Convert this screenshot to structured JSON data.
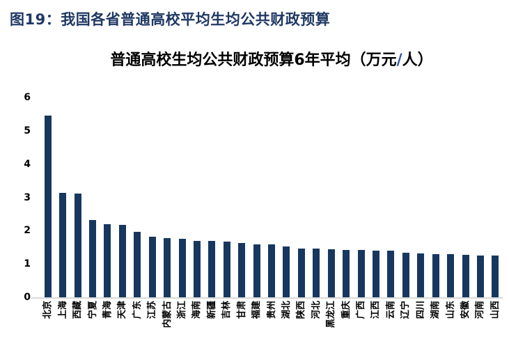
{
  "page": {
    "figure_title": "图19：我国各省普通高校平均生均公共财政预算"
  },
  "chart_data": {
    "type": "bar",
    "title": "普通高校生均公共财政预算6年平均（万元/人）",
    "xlabel": "",
    "ylabel": "",
    "ylim": [
      0,
      6
    ],
    "yticks": [
      0,
      1,
      2,
      3,
      4,
      5,
      6
    ],
    "grid": false,
    "legend": "none",
    "categories": [
      "北京",
      "上海",
      "西藏",
      "宁夏",
      "青海",
      "天津",
      "广东",
      "江苏",
      "内蒙古",
      "浙江",
      "海南",
      "新疆",
      "吉林",
      "甘肃",
      "福建",
      "贵州",
      "湖北",
      "陕西",
      "河北",
      "黑龙江",
      "重庆",
      "广西",
      "江西",
      "云南",
      "辽宁",
      "四川",
      "湖南",
      "山东",
      "安徽",
      "河南",
      "山西"
    ],
    "values": [
      5.45,
      3.14,
      3.12,
      2.32,
      2.2,
      2.17,
      1.96,
      1.81,
      1.77,
      1.75,
      1.7,
      1.69,
      1.67,
      1.63,
      1.59,
      1.58,
      1.53,
      1.47,
      1.47,
      1.44,
      1.43,
      1.42,
      1.4,
      1.4,
      1.34,
      1.32,
      1.29,
      1.29,
      1.27,
      1.25,
      1.25
    ],
    "colors": {
      "bar": "#17375E",
      "figure_title": "#1F3864",
      "chart_title": "#000000",
      "title_slash": "#2F5597",
      "axis_line": "#D9D9D9",
      "tick_labels": "#000000"
    }
  }
}
